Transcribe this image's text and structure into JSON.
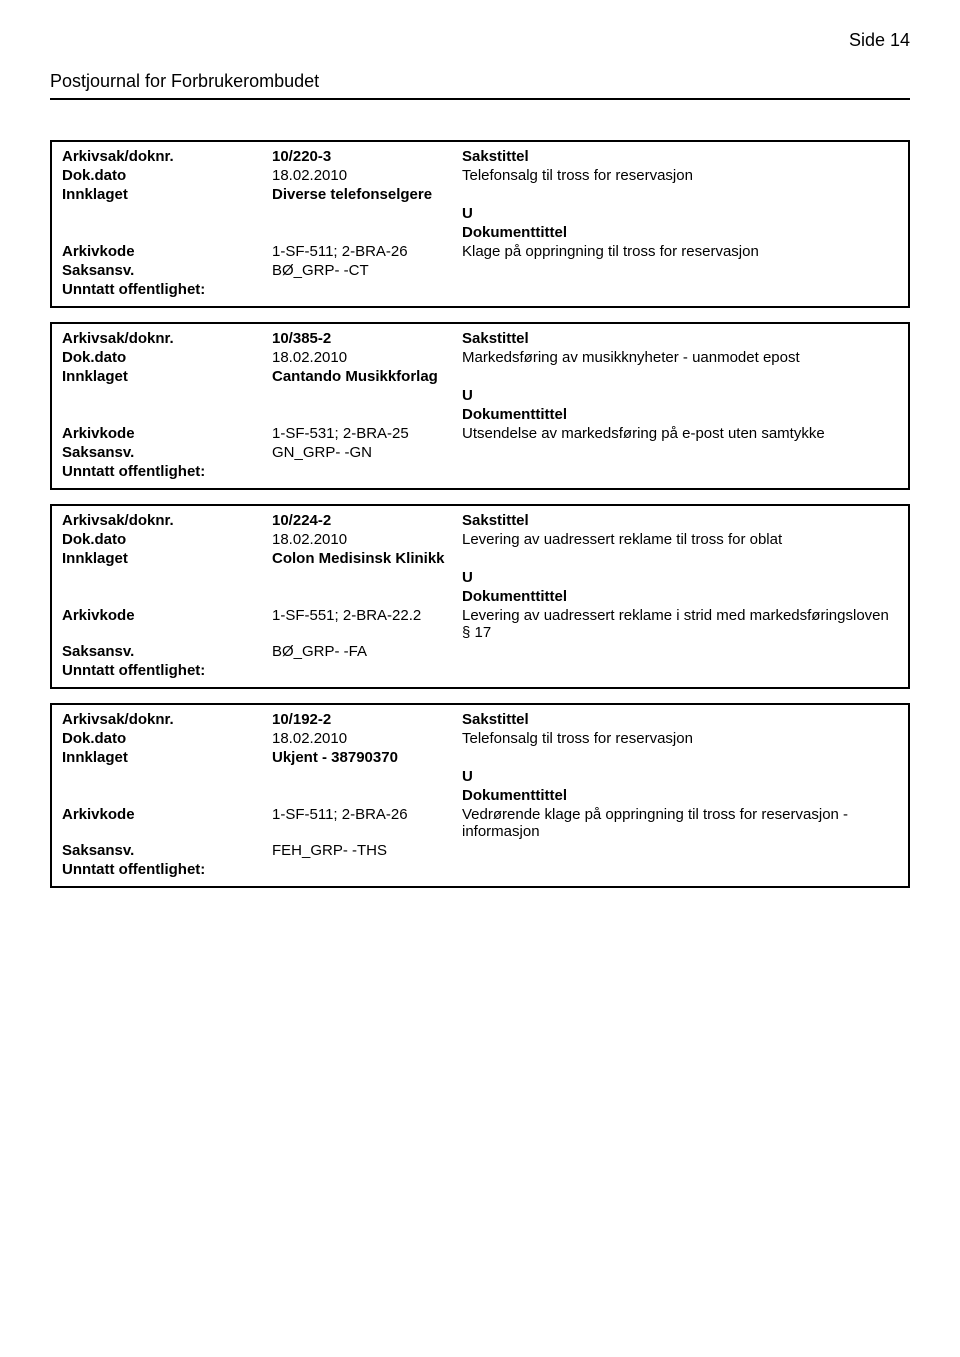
{
  "page": {
    "side_label": "Side 14",
    "journal_title": "Postjournal for Forbrukerombudet"
  },
  "labels": {
    "arkivsak": "Arkivsak/doknr.",
    "dokdato": "Dok.dato",
    "innklaget": "Innklaget",
    "arkivkode": "Arkivkode",
    "saksansv": "Saksansv.",
    "unntatt": "Unntatt offentlighet:",
    "sakstittel": "Sakstittel",
    "dokumenttittel": "Dokumenttittel"
  },
  "entries": [
    {
      "arkivsak": "10/220-3",
      "dokdato": "18.02.2010",
      "sakstittel_text": "Telefonsalg til tross for reservasjon",
      "innklaget": "Diverse telefonselgere",
      "u": "U",
      "arkivkode": "1-SF-511; 2-BRA-26",
      "doktittel_text": "Klage på oppringning til tross for reservasjon",
      "saksansv": "BØ_GRP- -CT",
      "unntatt": ""
    },
    {
      "arkivsak": "10/385-2",
      "dokdato": "18.02.2010",
      "sakstittel_text": "Markedsføring av musikknyheter - uanmodet epost",
      "innklaget": "Cantando Musikkforlag",
      "u": "U",
      "arkivkode": "1-SF-531; 2-BRA-25",
      "doktittel_text": "Utsendelse av markedsføring på e-post uten samtykke",
      "saksansv": "GN_GRP- -GN",
      "unntatt": ""
    },
    {
      "arkivsak": "10/224-2",
      "dokdato": "18.02.2010",
      "sakstittel_text": "Levering av uadressert reklame til tross for oblat",
      "innklaget": "Colon Medisinsk Klinikk",
      "u": "U",
      "arkivkode": "1-SF-551; 2-BRA-22.2",
      "doktittel_text": "Levering av uadressert reklame i strid med markedsføringsloven § 17",
      "saksansv": "BØ_GRP- -FA",
      "unntatt": ""
    },
    {
      "arkivsak": "10/192-2",
      "dokdato": "18.02.2010",
      "sakstittel_text": "Telefonsalg til tross for reservasjon",
      "innklaget": "Ukjent - 38790370",
      "u": "U",
      "arkivkode": "1-SF-511; 2-BRA-26",
      "doktittel_text": "Vedrørende klage på oppringning til tross for reservasjon - informasjon",
      "saksansv": "FEH_GRP- -THS",
      "unntatt": ""
    }
  ]
}
